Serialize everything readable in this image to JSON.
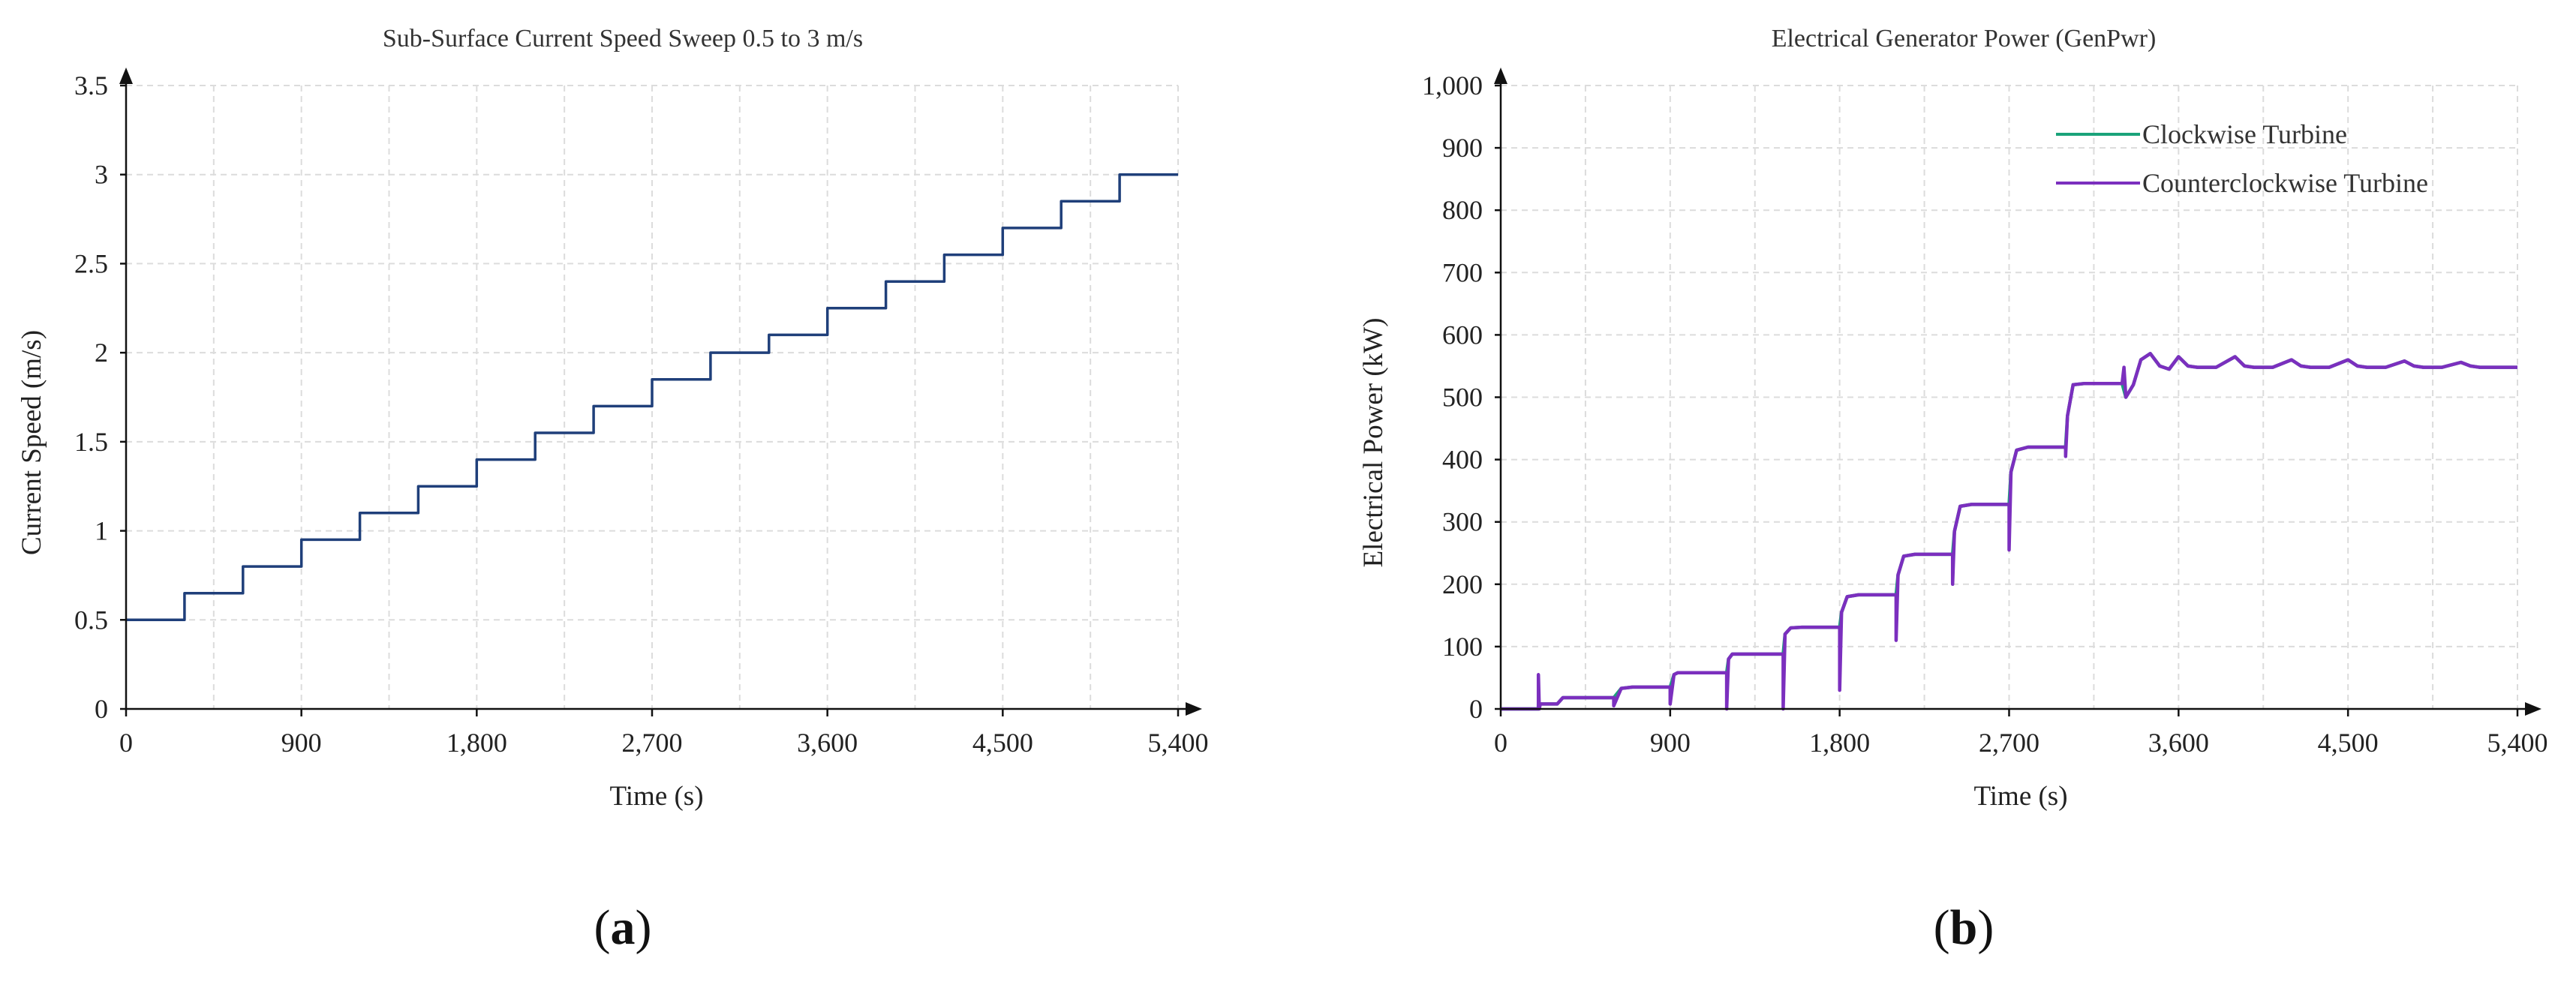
{
  "figure": {
    "panel_labels": [
      "(a)",
      "(b)"
    ]
  },
  "chart_data": [
    {
      "type": "line",
      "title": "Sub-Surface Current Speed Sweep 0.5 to 3 m/s",
      "xlabel": "Time (s)",
      "ylabel": "Current Speed (m/s)",
      "xlim": [
        0,
        5400
      ],
      "ylim": [
        0,
        3.5
      ],
      "xticks": [
        0,
        900,
        1800,
        2700,
        3600,
        4500,
        5400
      ],
      "xtick_labels": [
        "0",
        "900",
        "1,800",
        "2,700",
        "3,600",
        "4,500",
        "5,400"
      ],
      "yticks": [
        0,
        0.5,
        1,
        1.5,
        2,
        2.5,
        3,
        3.5
      ],
      "ytick_labels": [
        "0",
        "0.5",
        "1",
        "1.5",
        "2",
        "2.5",
        "3",
        "3.5"
      ],
      "grid": true,
      "series": [
        {
          "name": "Current Speed",
          "color": "#1f3f7a",
          "step": true,
          "x": [
            0,
            300,
            600,
            900,
            1200,
            1500,
            1800,
            2100,
            2400,
            2700,
            3000,
            3300,
            3600,
            3900,
            4200,
            4500,
            4800,
            5100,
            5400
          ],
          "y": [
            0.5,
            0.65,
            0.8,
            0.95,
            1.1,
            1.25,
            1.4,
            1.55,
            1.7,
            1.85,
            2.0,
            2.1,
            2.25,
            2.4,
            2.55,
            2.7,
            2.85,
            3.0,
            3.0
          ]
        }
      ]
    },
    {
      "type": "line",
      "title": "Electrical Generator Power (GenPwr)",
      "xlabel": "Time (s)",
      "ylabel": "Electrical Power (kW)",
      "xlim": [
        0,
        5400
      ],
      "ylim": [
        0,
        1000
      ],
      "xticks": [
        0,
        900,
        1800,
        2700,
        3600,
        4500,
        5400
      ],
      "xtick_labels": [
        "0",
        "900",
        "1,800",
        "2,700",
        "3,600",
        "4,500",
        "5,400"
      ],
      "yticks": [
        0,
        100,
        200,
        300,
        400,
        500,
        600,
        700,
        800,
        900,
        1000
      ],
      "ytick_labels": [
        "0",
        "100",
        "200",
        "300",
        "400",
        "500",
        "600",
        "700",
        "800",
        "900",
        "1,000"
      ],
      "grid": true,
      "legend": "top-right",
      "series": [
        {
          "name": "Clockwise Turbine",
          "color": "#1aa37a",
          "x": [
            0,
            200,
            200,
            220,
            300,
            330,
            400,
            600,
            640,
            700,
            900,
            920,
            940,
            1000,
            1200,
            1210,
            1230,
            1300,
            1500,
            1510,
            1540,
            1600,
            1800,
            1810,
            1840,
            1900,
            2100,
            2110,
            2140,
            2200,
            2400,
            2410,
            2440,
            2500,
            2700,
            2710,
            2740,
            2800,
            3000,
            3010,
            3040,
            3100,
            3300,
            3320,
            3360,
            3400,
            3450,
            3500,
            3550,
            3600,
            3650,
            3700,
            3800,
            3900,
            3950,
            4000,
            4100,
            4200,
            4250,
            4300,
            4400,
            4500,
            4550,
            4600,
            4700,
            4800,
            4850,
            4900,
            5000,
            5100,
            5150,
            5200,
            5400
          ],
          "y": [
            0,
            0,
            8,
            8,
            8,
            18,
            18,
            18,
            33,
            35,
            35,
            55,
            58,
            58,
            58,
            80,
            88,
            88,
            88,
            120,
            130,
            131,
            131,
            155,
            180,
            183,
            183,
            215,
            245,
            248,
            248,
            285,
            325,
            328,
            328,
            380,
            415,
            420,
            420,
            470,
            520,
            522,
            522,
            500,
            520,
            560,
            570,
            550,
            545,
            565,
            550,
            548,
            548,
            565,
            550,
            548,
            548,
            560,
            550,
            548,
            548,
            560,
            550,
            548,
            548,
            558,
            550,
            548,
            548,
            556,
            550,
            548,
            548
          ]
        },
        {
          "name": "Counterclockwise Turbine",
          "color": "#7b2fbe",
          "x": [
            0,
            200,
            200,
            205,
            210,
            300,
            330,
            400,
            600,
            600,
            640,
            700,
            900,
            900,
            920,
            940,
            1000,
            1200,
            1200,
            1210,
            1230,
            1300,
            1500,
            1500,
            1510,
            1540,
            1600,
            1800,
            1800,
            1810,
            1840,
            1900,
            2100,
            2100,
            2110,
            2140,
            2200,
            2400,
            2400,
            2410,
            2440,
            2500,
            2700,
            2700,
            2710,
            2740,
            2800,
            3000,
            3000,
            3010,
            3040,
            3100,
            3300,
            3310,
            3320,
            3360,
            3400,
            3450,
            3500,
            3550,
            3600,
            3650,
            3700,
            3800,
            3900,
            3950,
            4000,
            4100,
            4200,
            4250,
            4300,
            4400,
            4500,
            4550,
            4600,
            4700,
            4800,
            4850,
            4900,
            5000,
            5100,
            5150,
            5200,
            5400
          ],
          "y": [
            0,
            0,
            55,
            0,
            8,
            8,
            18,
            18,
            18,
            5,
            33,
            35,
            35,
            8,
            55,
            58,
            58,
            58,
            0,
            80,
            88,
            88,
            88,
            0,
            120,
            130,
            131,
            131,
            30,
            155,
            180,
            183,
            183,
            110,
            215,
            245,
            248,
            248,
            200,
            285,
            325,
            328,
            328,
            255,
            380,
            415,
            420,
            420,
            405,
            470,
            520,
            522,
            522,
            548,
            500,
            520,
            560,
            570,
            550,
            545,
            565,
            550,
            548,
            548,
            565,
            550,
            548,
            548,
            560,
            550,
            548,
            548,
            560,
            550,
            548,
            548,
            558,
            550,
            548,
            548,
            556,
            550,
            548,
            548
          ]
        }
      ]
    }
  ]
}
